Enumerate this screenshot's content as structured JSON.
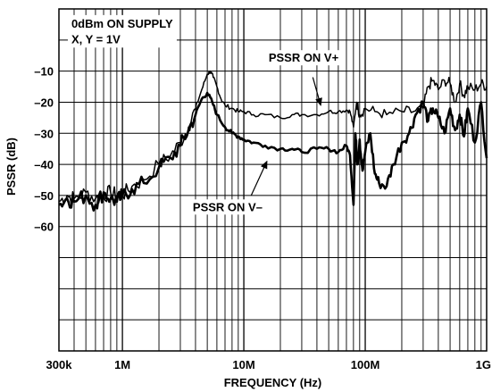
{
  "chart_data": {
    "type": "line",
    "title": "",
    "xlabel": "FREQUENCY (Hz)",
    "ylabel": "PSSR (dB)",
    "xscale": "log",
    "xlim": [
      300000,
      1000000000
    ],
    "ylim": [
      -100,
      10
    ],
    "grid": true,
    "x_ticks": [
      {
        "value": 300000,
        "label": "300k"
      },
      {
        "value": 1000000,
        "label": "1M"
      },
      {
        "value": 10000000,
        "label": "10M"
      },
      {
        "value": 100000000,
        "label": "100M"
      },
      {
        "value": 1000000000,
        "label": "1G"
      }
    ],
    "y_ticks": [
      {
        "value": -10,
        "label": "–10"
      },
      {
        "value": -20,
        "label": "–20"
      },
      {
        "value": -30,
        "label": "–30"
      },
      {
        "value": -40,
        "label": "–40"
      },
      {
        "value": -50,
        "label": "–50"
      },
      {
        "value": -60,
        "label": "–60"
      }
    ],
    "y_gridlines": [
      0,
      -10,
      -20,
      -30,
      -40,
      -50,
      -60,
      -70,
      -80,
      -90
    ],
    "annotations": [
      {
        "text": "0dBm ON SUPPLY",
        "x": 380000,
        "y": 4
      },
      {
        "text": "X, Y = 1V",
        "x": 380000,
        "y": -1
      }
    ],
    "series": [
      {
        "name": "PSSR ON V+",
        "label_at": [
          16000000,
          -7
        ],
        "arrow_from": [
          37000000,
          -12
        ],
        "arrow_to": [
          43000000,
          -21
        ],
        "stroke_width": 1.5,
        "x": [
          300000,
          350000,
          400000,
          500000,
          600000,
          700000,
          800000,
          900000,
          1000000,
          1200000,
          1500000,
          2000000,
          2500000,
          3000000,
          3500000,
          4000000,
          4500000,
          5000000,
          5300000,
          5600000,
          6000000,
          6500000,
          7000000,
          8000000,
          9000000,
          10000000,
          12000000,
          15000000,
          20000000,
          25000000,
          30000000,
          40000000,
          50000000,
          60000000,
          70000000,
          75000000,
          80000000,
          85000000,
          90000000,
          100000000,
          120000000,
          150000000,
          200000000,
          250000000,
          300000000,
          330000000,
          360000000,
          400000000,
          450000000,
          500000000,
          550000000,
          600000000,
          650000000,
          700000000,
          800000000,
          900000000,
          1000000000
        ],
        "y": [
          -52,
          -50,
          -51,
          -49,
          -51,
          -50,
          -49,
          -50,
          -50,
          -47,
          -45,
          -40,
          -37,
          -33,
          -28,
          -22,
          -16,
          -11,
          -10,
          -12,
          -15,
          -19,
          -21,
          -22,
          -23,
          -23,
          -24,
          -24,
          -25,
          -24,
          -24,
          -24,
          -23,
          -23,
          -22.5,
          -23,
          -28,
          -20,
          -24,
          -22,
          -23,
          -24,
          -23,
          -23,
          -22,
          -15,
          -13,
          -16,
          -13,
          -14,
          -20,
          -14,
          -18,
          -15,
          -16,
          -14,
          -15
        ]
      },
      {
        "name": "PSSR ON V–",
        "label_at": [
          3800000,
          -55
        ],
        "arrow_from": [
          11500000,
          -50
        ],
        "arrow_to": [
          15500000,
          -39
        ],
        "stroke_width": 2.6,
        "x": [
          300000,
          350000,
          400000,
          500000,
          600000,
          700000,
          800000,
          900000,
          1000000,
          1200000,
          1500000,
          2000000,
          2500000,
          3000000,
          3500000,
          4000000,
          4500000,
          5000000,
          5500000,
          6000000,
          7000000,
          8000000,
          9000000,
          10000000,
          12000000,
          15000000,
          20000000,
          25000000,
          30000000,
          40000000,
          50000000,
          60000000,
          70000000,
          75000000,
          80000000,
          83000000,
          86000000,
          90000000,
          95000000,
          100000000,
          110000000,
          120000000,
          130000000,
          150000000,
          170000000,
          200000000,
          230000000,
          260000000,
          300000000,
          330000000,
          360000000,
          400000000,
          450000000,
          500000000,
          550000000,
          600000000,
          650000000,
          700000000,
          800000000,
          900000000,
          1000000000
        ],
        "y": [
          -53,
          -51,
          -52,
          -50,
          -53,
          -49,
          -51,
          -52,
          -50,
          -48,
          -46,
          -41,
          -38,
          -34,
          -29,
          -24,
          -19,
          -17,
          -20,
          -24,
          -28,
          -30,
          -31,
          -32,
          -33,
          -34,
          -35,
          -35,
          -36,
          -35,
          -35,
          -36,
          -34,
          -37,
          -53,
          -30,
          -40,
          -32,
          -42,
          -36,
          -30,
          -43,
          -46,
          -47,
          -40,
          -33,
          -30,
          -24,
          -20,
          -26,
          -22,
          -25,
          -30,
          -22,
          -29,
          -24,
          -31,
          -22,
          -33,
          -20,
          -38
        ]
      }
    ]
  }
}
